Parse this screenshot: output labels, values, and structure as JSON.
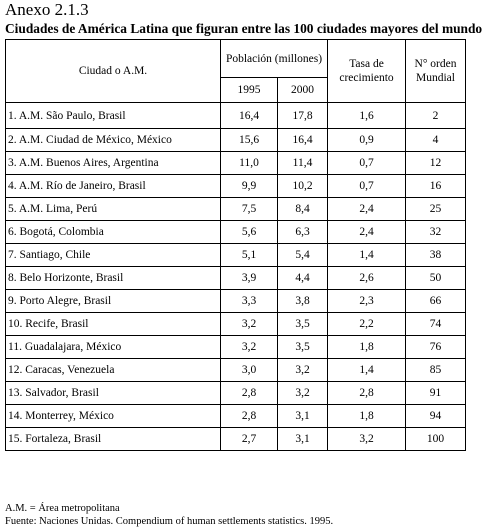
{
  "heading": "Anexo 2.1.3",
  "subtitle": "Ciudades de América Latina que figuran entre las 100 ciudades mayores del mundo",
  "columns": {
    "city": "Ciudad o A.M.",
    "population": "Población (millones)",
    "year1": "1995",
    "year2": "2000",
    "rate": "Tasa de crecimiento",
    "rank": "N° orden Mundial"
  },
  "rows": [
    {
      "city": "1.   A.M. São Paulo, Brasil",
      "p1995": "16,4",
      "p2000": "17,8",
      "rate": "1,6",
      "rank": "2"
    },
    {
      "city": "2.   A.M. Ciudad de México, México",
      "p1995": "15,6",
      "p2000": "16,4",
      "rate": "0,9",
      "rank": "4"
    },
    {
      "city": "3.   A.M. Buenos Aires, Argentina",
      "p1995": "11,0",
      "p2000": "11,4",
      "rate": "0,7",
      "rank": "12"
    },
    {
      "city": "4.   A.M. Río de Janeiro, Brasil",
      "p1995": "9,9",
      "p2000": "10,2",
      "rate": "0,7",
      "rank": "16"
    },
    {
      "city": "5.   A.M. Lima, Perú",
      "p1995": "7,5",
      "p2000": "8,4",
      "rate": "2,4",
      "rank": "25"
    },
    {
      "city": "6.   Bogotá, Colombia",
      "p1995": "5,6",
      "p2000": "6,3",
      "rate": "2,4",
      "rank": "32"
    },
    {
      "city": "7.   Santiago, Chile",
      "p1995": "5,1",
      "p2000": "5,4",
      "rate": "1,4",
      "rank": "38"
    },
    {
      "city": "8.   Belo Horizonte, Brasil",
      "p1995": "3,9",
      "p2000": "4,4",
      "rate": "2,6",
      "rank": "50"
    },
    {
      "city": "9.   Porto Alegre, Brasil",
      "p1995": "3,3",
      "p2000": "3,8",
      "rate": "2,3",
      "rank": "66"
    },
    {
      "city": "10.  Recife, Brasil",
      "p1995": "3,2",
      "p2000": "3,5",
      "rate": "2,2",
      "rank": "74"
    },
    {
      "city": "11.  Guadalajara, México",
      "p1995": "3,2",
      "p2000": "3,5",
      "rate": "1,8",
      "rank": "76"
    },
    {
      "city": "12.  Caracas, Venezuela",
      "p1995": "3,0",
      "p2000": "3,2",
      "rate": "1,4",
      "rank": "85"
    },
    {
      "city": "13.  Salvador, Brasil",
      "p1995": "2,8",
      "p2000": "3,2",
      "rate": "2,8",
      "rank": "91"
    },
    {
      "city": "14.  Monterrey, México",
      "p1995": "2,8",
      "p2000": "3,1",
      "rate": "1,8",
      "rank": "94"
    },
    {
      "city": "15.  Fortaleza, Brasil",
      "p1995": "2,7",
      "p2000": "3,1",
      "rate": "3,2",
      "rank": "100"
    }
  ],
  "footnotes": {
    "abbrev": "A.M. = Área metropolitana",
    "source": "Fuente: Naciones Unidas. Compendium of human settlements statistics. 1995."
  }
}
